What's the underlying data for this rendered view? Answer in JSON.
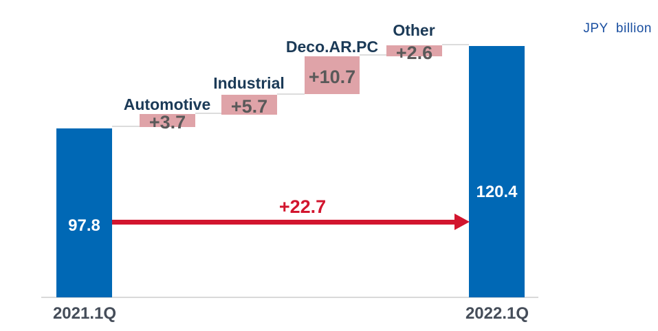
{
  "labels": {
    "unit": "JPY  billion",
    "start_value": "97.8",
    "end_value": "120.4",
    "axis_start": "2021.1Q",
    "axis_end": "2022.1Q",
    "total_change": "+22.7",
    "steps": [
      {
        "name": "Automotive",
        "delta": "+3.7"
      },
      {
        "name": "Industrial",
        "delta": "+5.7"
      },
      {
        "name": "Deco.AR.PC",
        "delta": "+10.7"
      },
      {
        "name": "Other",
        "delta": "+2.6"
      }
    ]
  },
  "chart_data": {
    "type": "waterfall",
    "title": "",
    "unit": "JPY billion",
    "categories": [
      "2021.1Q",
      "Automotive",
      "Industrial",
      "Deco.AR.PC",
      "Other",
      "2022.1Q"
    ],
    "values": [
      97.8,
      3.7,
      5.7,
      10.7,
      2.6,
      120.4
    ],
    "series_roles": [
      "total",
      "increase",
      "increase",
      "increase",
      "increase",
      "total"
    ],
    "cumulative_levels": [
      97.8,
      101.5,
      107.2,
      117.9,
      120.5,
      120.4
    ],
    "total_change": 22.7,
    "legend": "none",
    "gridlines": false,
    "axis": {
      "x_labels_shown": [
        "2021.1Q",
        "2022.1Q"
      ],
      "y_axis_shown": false
    }
  },
  "colors": {
    "bar_blue": "#0068b5",
    "step_pink": "#dfa3a8",
    "category_label_navy": "#1b3a57",
    "step_value_gray": "#595959",
    "arrow_red": "#d2152e",
    "axis_label_gray": "#454d59",
    "unit_label_blue": "#1a4fa0",
    "baseline_gray": "#d9d9d9",
    "background": "#ffffff"
  }
}
